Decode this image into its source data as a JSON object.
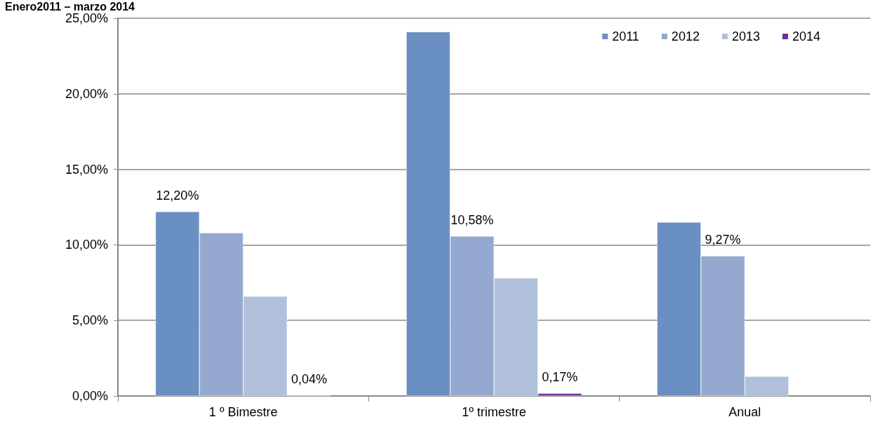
{
  "chart_data": {
    "type": "bar",
    "title": "Enero2011 – marzo 2014",
    "categories": [
      "1 º Bimestre",
      "1º trimestre",
      "Anual"
    ],
    "series": [
      {
        "name": "2011",
        "color": "#6a8fc2",
        "values": [
          12.2,
          24.1,
          11.5
        ],
        "value_labels": [
          "12,20%",
          null,
          null
        ]
      },
      {
        "name": "2012",
        "color": "#95a9d0",
        "values": [
          10.8,
          10.58,
          9.27
        ],
        "value_labels": [
          null,
          "10,58%",
          "9,27%"
        ]
      },
      {
        "name": "2013",
        "color": "#b0c0da",
        "values": [
          6.6,
          7.8,
          1.3
        ],
        "value_labels": [
          null,
          null,
          null
        ]
      },
      {
        "name": "2014",
        "color": "#7030a0",
        "values": [
          0.04,
          0.17,
          null
        ],
        "value_labels": [
          "0,04%",
          "0,17%",
          null
        ]
      }
    ],
    "ylim": [
      0,
      25
    ],
    "yticks": [
      {
        "value": 0,
        "label": "0,00%"
      },
      {
        "value": 5,
        "label": "5,00%"
      },
      {
        "value": 10,
        "label": "10,00%"
      },
      {
        "value": 15,
        "label": "15,00%"
      },
      {
        "value": 20,
        "label": "20,00%"
      },
      {
        "value": 25,
        "label": "25,00%"
      }
    ],
    "grid": "y",
    "legend": "top right"
  }
}
